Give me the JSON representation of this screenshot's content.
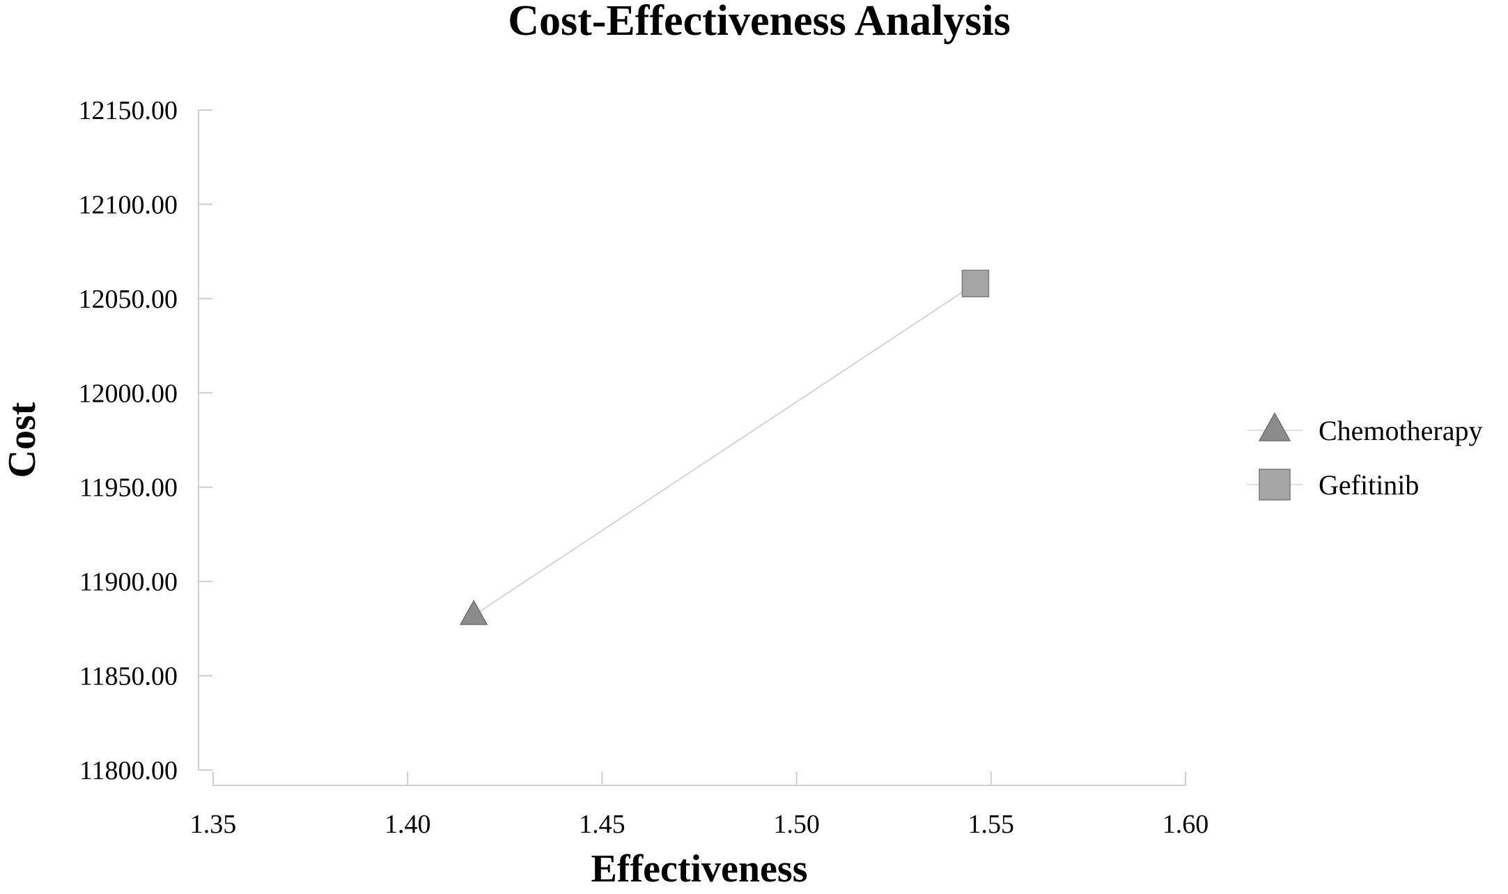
{
  "chart_data": {
    "type": "scatter",
    "title": "Cost-Effectiveness Analysis",
    "xlabel": "Effectiveness",
    "ylabel": "Cost",
    "xlim": [
      1.35,
      1.6
    ],
    "ylim": [
      11800,
      12150
    ],
    "x_ticks": [
      "1.35",
      "1.40",
      "1.45",
      "1.50",
      "1.55",
      "1.60"
    ],
    "y_ticks": [
      "12150.00",
      "12100.00",
      "12050.00",
      "12000.00",
      "11950.00",
      "11900.00",
      "11850.00",
      "11800.00"
    ],
    "grid": false,
    "legend_position": "right",
    "frontier_line": true,
    "series": [
      {
        "name": "Chemotherapy",
        "marker": "triangle",
        "color": "#8c8c8c",
        "x": 1.417,
        "y": 11882
      },
      {
        "name": "Gefitinib",
        "marker": "square",
        "color": "#a6a6a6",
        "x": 1.546,
        "y": 12058
      }
    ]
  }
}
